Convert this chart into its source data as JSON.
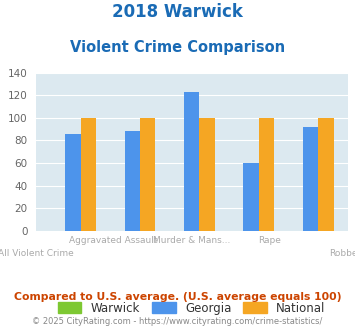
{
  "title_line1": "2018 Warwick",
  "title_line2": "Violent Crime Comparison",
  "x_categories": [
    "All Violent Crime",
    "Aggravated Assault",
    "Murder & Mans...",
    "Rape",
    "Robbery"
  ],
  "x_labels_top": [
    "",
    "Aggravated Assault",
    "Murder & Mans...",
    "Rape",
    ""
  ],
  "x_labels_bot": [
    "All Violent Crime",
    "",
    "",
    "",
    "Robbery"
  ],
  "bar_colors": {
    "Warwick": "#7dc832",
    "Georgia": "#4d94eb",
    "National": "#f5a623"
  },
  "georgia_values": [
    86,
    88,
    123,
    60,
    92
  ],
  "national_values": [
    100,
    100,
    100,
    100,
    100
  ],
  "warwick_values": [
    0,
    0,
    0,
    0,
    0
  ],
  "ylim": [
    0,
    140
  ],
  "yticks": [
    0,
    20,
    40,
    60,
    80,
    100,
    120,
    140
  ],
  "background_color": "#dce9f0",
  "title_color": "#1a6bb5",
  "footer_text": "Compared to U.S. average. (U.S. average equals 100)",
  "footer_color": "#cc4400",
  "copyright_text": "© 2025 CityRating.com - https://www.cityrating.com/crime-statistics/",
  "copyright_color": "#888888",
  "tick_label_color": "#aaaaaa"
}
